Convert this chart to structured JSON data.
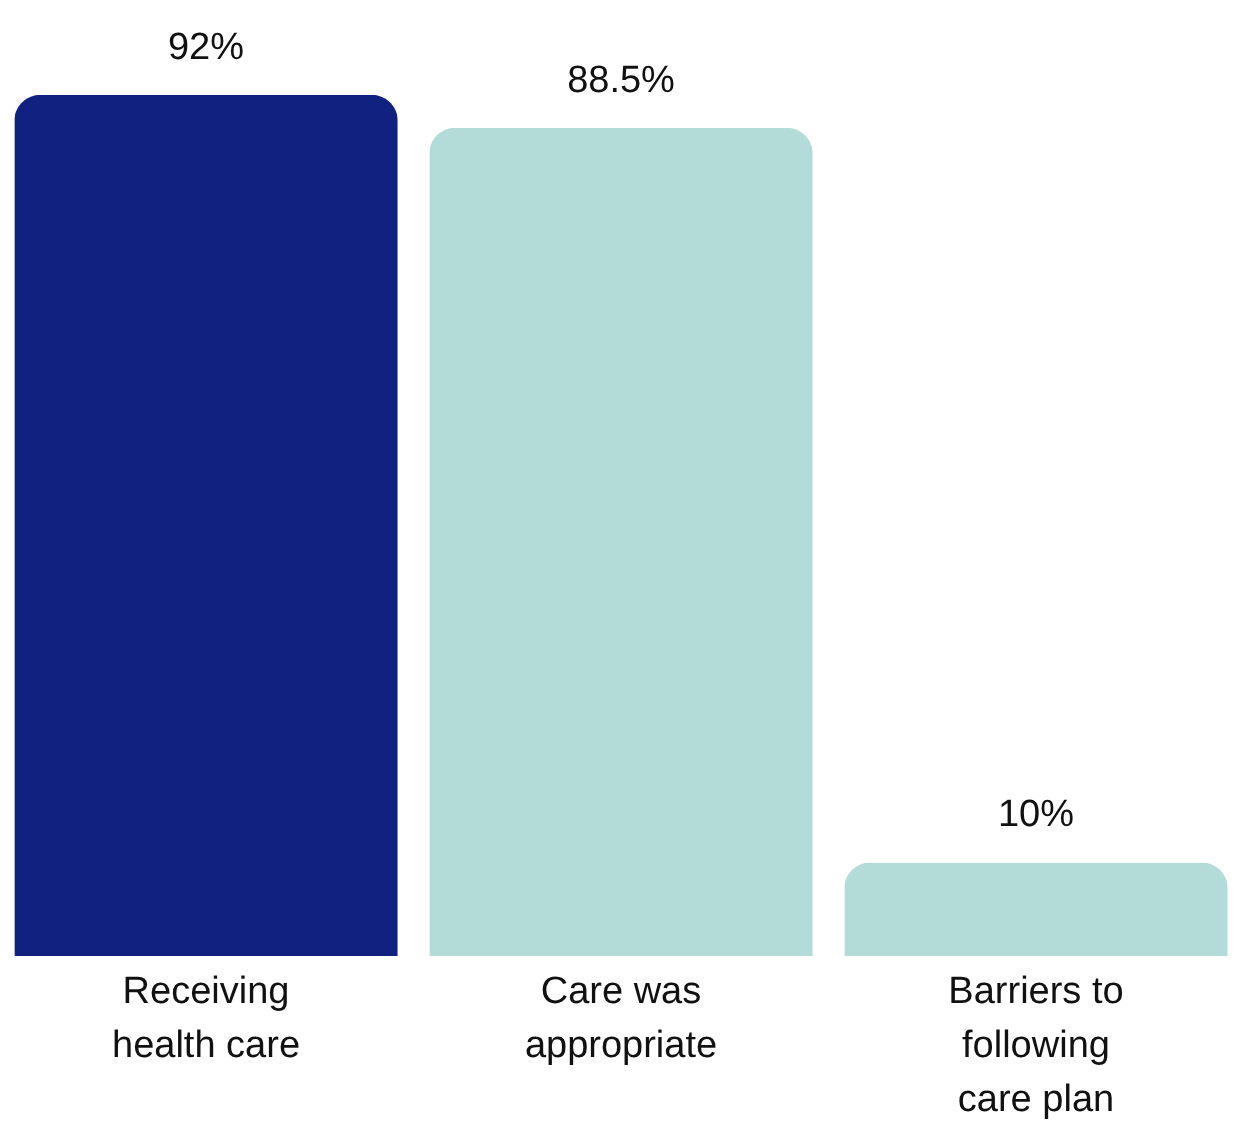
{
  "chart_data": {
    "type": "bar",
    "categories": [
      "Receiving health care",
      "Care was appropriate",
      "Barriers to following care plan"
    ],
    "values": [
      92,
      88.5,
      10
    ],
    "colors": [
      "#10217f",
      "#b3dcd9",
      "#b3dcd9"
    ],
    "value_labels": [
      "92%",
      "88.5%",
      "10%"
    ],
    "grid": false
  }
}
